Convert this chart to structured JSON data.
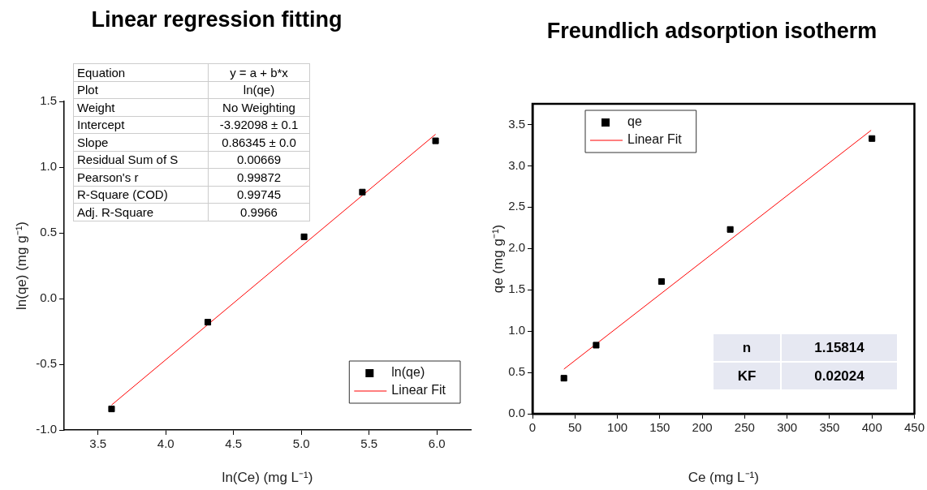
{
  "chart_data": [
    {
      "type": "scatter",
      "title": "Linear regression fitting",
      "xlabel": "ln(Ce) (mg L⁻¹)",
      "ylabel": "ln(qe) (mg g⁻¹)",
      "xlim": [
        3.25,
        6.25
      ],
      "xticks": [
        3.5,
        {
          "value": 4,
          "label": "4.0"
        },
        4.5,
        {
          "value": 5,
          "label": "5.0"
        },
        5.5,
        {
          "value": 6,
          "label": "6.0"
        }
      ],
      "ylim": [
        -1,
        1.5
      ],
      "yticks": [
        {
          "value": -1,
          "label": "-1.0"
        },
        -0.5,
        {
          "value": 0,
          "label": "0.0"
        },
        0.5,
        {
          "value": 1,
          "label": "1.0"
        },
        1.5
      ],
      "grid": false,
      "legend": "bottom right",
      "series": [
        {
          "name": "ln(qe)",
          "type": "scatter",
          "marker": "square",
          "color": "#000000",
          "x": [
            3.6,
            4.31,
            5.02,
            5.45,
            5.99
          ],
          "values": [
            -0.84,
            -0.18,
            0.47,
            0.81,
            1.2
          ]
        },
        {
          "name": "Linear Fit",
          "type": "line",
          "marker": "none",
          "color": "#ff0000",
          "x": [
            3.6,
            5.99
          ],
          "values": [
            -0.81,
            1.25
          ]
        }
      ],
      "annotations": [
        "Equation",
        "y = a + b*x",
        "Plot",
        "ln(qe)",
        "Weight",
        "No Weighting",
        "Intercept",
        "-3.92098 ± 0.1",
        "Slope",
        "0.86345 ± 0.0",
        "Residual Sum of S",
        "0.00669",
        "Pearson's r",
        "0.99872",
        "R-Square (COD)",
        "0.99745",
        "Adj. R-Square",
        "0.9966"
      ]
    },
    {
      "type": "scatter",
      "title": "Freundlich adsorption isotherm",
      "xlabel": "Ce (mg L⁻¹)",
      "ylabel": "qe (mg g⁻¹)",
      "xlim": [
        0,
        450
      ],
      "xticks": [
        0,
        50,
        100,
        150,
        200,
        250,
        300,
        350,
        400,
        450
      ],
      "ylim": [
        0,
        3.75
      ],
      "yticks": [
        {
          "value": 0,
          "label": "0.0"
        },
        0.5,
        {
          "value": 1,
          "label": "1.0"
        },
        1.5,
        {
          "value": 2,
          "label": "2.0"
        },
        2.5,
        {
          "value": 3,
          "label": "3.0"
        },
        3.5
      ],
      "grid": false,
      "legend": "top left",
      "series": [
        {
          "name": "qe",
          "type": "scatter",
          "marker": "square",
          "color": "#000000",
          "x": [
            37,
            75,
            152,
            233,
            400
          ],
          "values": [
            0.43,
            0.83,
            1.6,
            2.23,
            3.33
          ]
        },
        {
          "name": "Linear Fit",
          "type": "line",
          "marker": "none",
          "color": "#ff0000",
          "x": [
            37,
            399
          ],
          "values": [
            0.54,
            3.43
          ]
        }
      ],
      "annotations": [
        "n",
        "1.15814",
        "KF",
        "0.02024"
      ]
    }
  ]
}
